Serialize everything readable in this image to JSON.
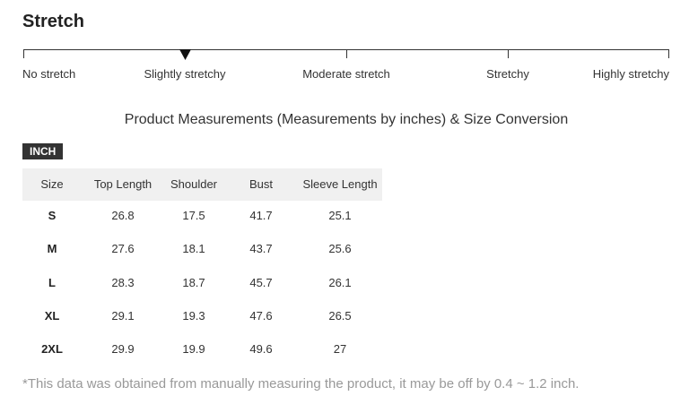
{
  "title": "Stretch",
  "stretch_scale": [
    "No stretch",
    "Slightly stretchy",
    "Moderate stretch",
    "Stretchy",
    "Highly stretchy"
  ],
  "heading": "Product Measurements (Measurements by inches) & Size Conversion",
  "unit_badge": "INCH",
  "table": {
    "header": [
      "Size",
      "Top Length",
      "Shoulder",
      "Bust",
      "Sleeve Length"
    ],
    "rows": [
      [
        "S",
        "26.8",
        "17.5",
        "41.7",
        "25.1"
      ],
      [
        "M",
        "27.6",
        "18.1",
        "43.7",
        "25.6"
      ],
      [
        "L",
        "28.3",
        "18.7",
        "45.7",
        "26.1"
      ],
      [
        "XL",
        "29.1",
        "19.3",
        "47.6",
        "26.5"
      ],
      [
        "2XL",
        "29.9",
        "19.9",
        "49.6",
        "27"
      ]
    ]
  },
  "footnote": "*This data was obtained from manually measuring the product, it may be off by 0.4 ~ 1.2 inch."
}
